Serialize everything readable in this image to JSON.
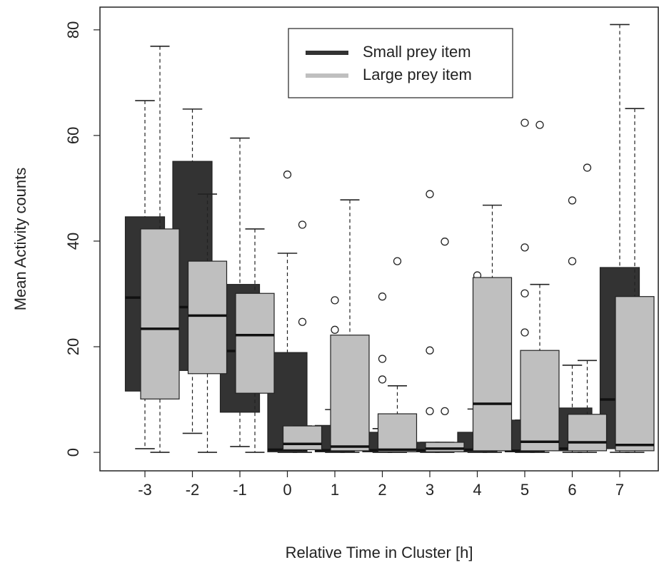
{
  "chart_data": {
    "type": "boxplot",
    "x_label": "Relative Time in Cluster [h]",
    "y_label": "Mean Activity counts",
    "categories": [
      "-3",
      "-2",
      "-1",
      "0",
      "1",
      "2",
      "3",
      "4",
      "5",
      "6",
      "7"
    ],
    "ylim": [
      -3.5,
      84.3
    ],
    "yticks": [
      0,
      20,
      40,
      60,
      80
    ],
    "legend": "top",
    "series": [
      {
        "name": "Small prey item",
        "color": "#333333",
        "boxes": [
          {
            "min": 0.7,
            "q1": 11.6,
            "median": 29.3,
            "q3": 44.6,
            "max": 66.6,
            "outliers": []
          },
          {
            "min": 3.6,
            "q1": 15.5,
            "median": 27.5,
            "q3": 55.1,
            "max": 65,
            "outliers": []
          },
          {
            "min": 1.1,
            "q1": 7.6,
            "median": 19.2,
            "q3": 31.8,
            "max": 59.5,
            "outliers": []
          },
          {
            "min": 0,
            "q1": 0.1,
            "median": 0.5,
            "q3": 18.9,
            "max": 37.7,
            "outliers": [
              52.6
            ]
          },
          {
            "min": 0,
            "q1": 0.1,
            "median": 0.4,
            "q3": 5.1,
            "max": 8.1,
            "outliers": [
              28.8,
              23.2
            ]
          },
          {
            "min": 0,
            "q1": 0.1,
            "median": 0.4,
            "q3": 3.8,
            "max": 4.5,
            "outliers": [
              29.5,
              17.7,
              13.8
            ]
          },
          {
            "min": 0,
            "q1": 0.1,
            "median": 0.4,
            "q3": 1.9,
            "max": 1.9,
            "outliers": [
              48.9,
              19.3,
              7.8
            ]
          },
          {
            "min": 0,
            "q1": 0.1,
            "median": 0.5,
            "q3": 3.8,
            "max": 8.2,
            "outliers": [
              33.5
            ]
          },
          {
            "min": 0,
            "q1": 0.1,
            "median": 0.3,
            "q3": 6.1,
            "max": 6.1,
            "outliers": [
              62.4,
              38.8,
              30.1,
              22.7
            ]
          },
          {
            "min": 0,
            "q1": 0.3,
            "median": 0.7,
            "q3": 8.4,
            "max": 16.5,
            "outliers": [
              47.7,
              36.2
            ]
          },
          {
            "min": 0,
            "q1": 0.7,
            "median": 10,
            "q3": 35,
            "max": 81,
            "outliers": []
          }
        ]
      },
      {
        "name": "Large prey item",
        "color": "#bfbfbf",
        "boxes": [
          {
            "min": 0,
            "q1": 10.1,
            "median": 23.4,
            "q3": 42.3,
            "max": 76.9,
            "outliers": []
          },
          {
            "min": 0,
            "q1": 14.9,
            "median": 25.9,
            "q3": 36.2,
            "max": 48.9,
            "outliers": []
          },
          {
            "min": 0,
            "q1": 11.2,
            "median": 22.2,
            "q3": 30.1,
            "max": 42.3,
            "outliers": []
          },
          {
            "min": 0,
            "q1": 0.5,
            "median": 1.6,
            "q3": 5,
            "max": 5,
            "outliers": [
              43.1,
              24.7
            ]
          },
          {
            "min": 0,
            "q1": 0.3,
            "median": 1.1,
            "q3": 22.2,
            "max": 47.8,
            "outliers": []
          },
          {
            "min": 0,
            "q1": 0.1,
            "median": 0.5,
            "q3": 7.3,
            "max": 12.6,
            "outliers": [
              36.2
            ]
          },
          {
            "min": 0,
            "q1": 0.1,
            "median": 0.7,
            "q3": 1.9,
            "max": 1.9,
            "outliers": [
              39.9,
              7.8
            ]
          },
          {
            "min": 0,
            "q1": 0.3,
            "median": 9.2,
            "q3": 33.1,
            "max": 46.8,
            "outliers": []
          },
          {
            "min": 0,
            "q1": 0.3,
            "median": 2,
            "q3": 19.3,
            "max": 31.8,
            "outliers": [
              62
            ]
          },
          {
            "min": 0,
            "q1": 0.3,
            "median": 1.9,
            "q3": 7.2,
            "max": 17.4,
            "outliers": [
              53.9
            ]
          },
          {
            "min": 0,
            "q1": 0.3,
            "median": 1.4,
            "q3": 29.5,
            "max": 65.1,
            "outliers": []
          }
        ]
      }
    ]
  }
}
